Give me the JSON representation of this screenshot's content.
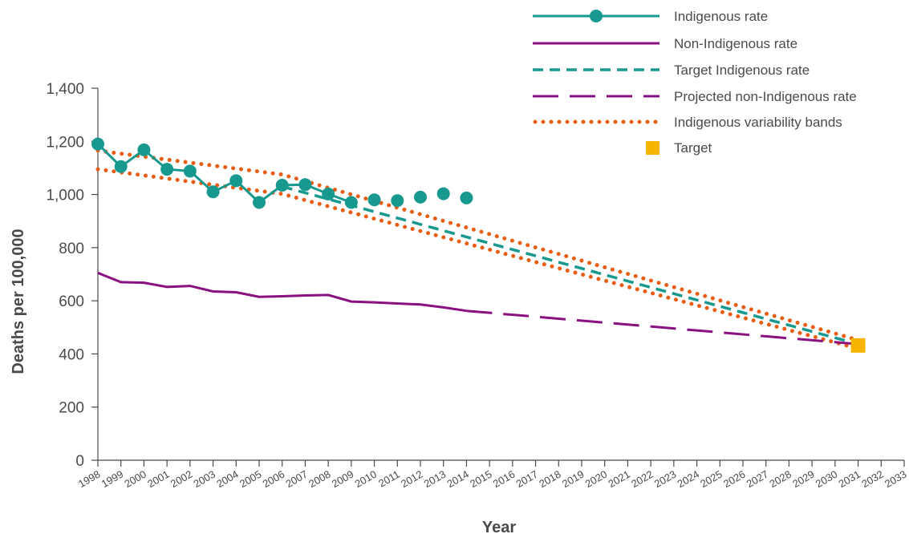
{
  "chart_data": {
    "type": "line",
    "xlabel": "Year",
    "ylabel": "Deaths per 100,000",
    "xlim": [
      1998,
      2033
    ],
    "ylim": [
      0,
      1400
    ],
    "yticks": [
      0,
      200,
      400,
      600,
      800,
      1000,
      1200,
      1400
    ],
    "ytick_labels": [
      "0",
      "200",
      "400",
      "600",
      "800",
      "1,000",
      "1,200",
      "1,400"
    ],
    "xticks": [
      1998,
      1999,
      2000,
      2001,
      2002,
      2003,
      2004,
      2005,
      2006,
      2007,
      2008,
      2009,
      2010,
      2011,
      2012,
      2013,
      2014,
      2015,
      2016,
      2017,
      2018,
      2019,
      2020,
      2021,
      2022,
      2023,
      2024,
      2025,
      2026,
      2027,
      2028,
      2029,
      2030,
      2031,
      2032,
      2033
    ],
    "grid": false,
    "legend_position": "top-right",
    "colors": {
      "indigenous": "#17998f",
      "non_indigenous": "#8a117f",
      "bands": "#e85d12",
      "target": "#f7b500",
      "axis": "#4a4a4a"
    },
    "series": [
      {
        "name": "Indigenous rate",
        "style": "solid-markers",
        "x": [
          1998,
          1999,
          2000,
          2001,
          2002,
          2003,
          2004,
          2005,
          2006,
          2007,
          2008,
          2009,
          2010,
          2011,
          2012,
          2013,
          2014
        ],
        "y": [
          1190,
          1105,
          1168,
          1095,
          1088,
          1010,
          1052,
          970,
          1035,
          1037,
          1002,
          970,
          980,
          977,
          990,
          1003,
          987
        ],
        "connected_through": 2009
      },
      {
        "name": "Non-Indigenous rate",
        "style": "solid",
        "x": [
          1998,
          1999,
          2000,
          2001,
          2002,
          2003,
          2004,
          2005,
          2006,
          2007,
          2008,
          2009,
          2010,
          2011,
          2012,
          2013,
          2014
        ],
        "y": [
          705,
          670,
          668,
          652,
          656,
          635,
          632,
          615,
          617,
          620,
          622,
          597,
          594,
          590,
          586,
          575,
          562
        ]
      },
      {
        "name": "Target Indigenous rate",
        "style": "dashed",
        "x": [
          2006,
          2031
        ],
        "y": [
          1030,
          437
        ]
      },
      {
        "name": "Projected non-Indigenous rate",
        "style": "long-dashed",
        "x": [
          2014,
          2031
        ],
        "y": [
          562,
          437
        ]
      },
      {
        "name": "Indigenous variability bands",
        "style": "dotted",
        "bands": [
          {
            "x": [
              1998,
              2006,
              2031
            ],
            "y": [
              1165,
              1075,
              452
            ]
          },
          {
            "x": [
              1998,
              2006,
              2031
            ],
            "y": [
              1095,
              1002,
              420
            ]
          }
        ]
      },
      {
        "name": "Target",
        "style": "square-marker",
        "x": [
          2031
        ],
        "y": [
          432
        ]
      }
    ]
  }
}
